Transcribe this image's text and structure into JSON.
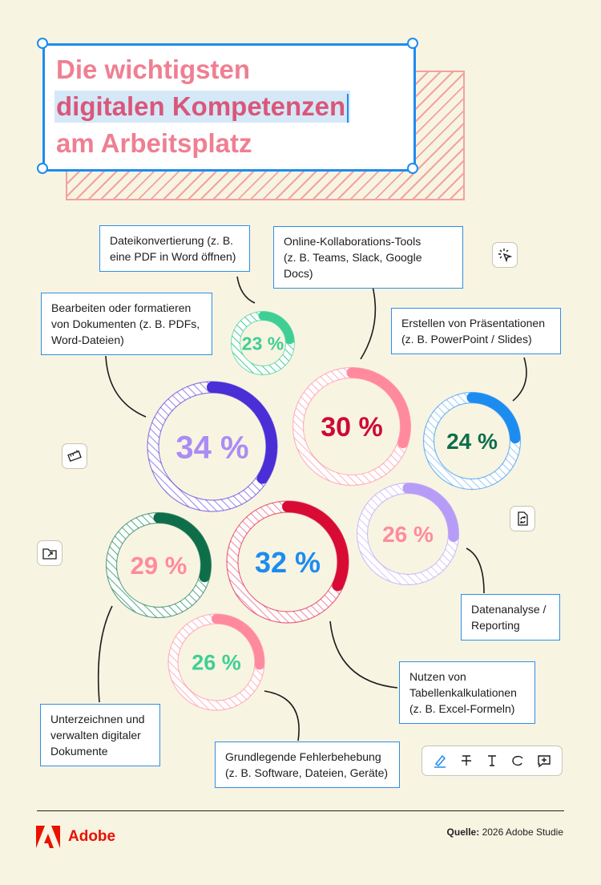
{
  "title": {
    "line1": "Die wichtigsten",
    "line2": "digitalen Kompetenzen",
    "line3": "am Arbeitsplatz"
  },
  "chart_data": {
    "type": "donut",
    "unit": "%",
    "items": [
      {
        "label": "Dateikonvertierung (z. B.\neine PDF in Word öffnen)",
        "value": 23,
        "value_label": "23 %",
        "color": "#3fcf95"
      },
      {
        "label": "Online-Kollaborations-Tools\n(z. B. Teams, Slack, Google Docs)",
        "value": 30,
        "value_label": "30 %",
        "color": "#ff8aa0",
        "text_color": "#cc0a3a"
      },
      {
        "label": "Bearbeiten oder formatieren\nvon Dokumenten (z. B. PDFs,\nWord-Dateien)",
        "value": 34,
        "value_label": "34 %",
        "color": "#4a2ed6",
        "text_color": "#a98cf5"
      },
      {
        "label": "Erstellen von Präsentationen\n(z. B. PowerPoint / Slides)",
        "value": 24,
        "value_label": "24 %",
        "color": "#1d8cf0",
        "text_color": "#0e6e4a"
      },
      {
        "label": "Datenanalyse /\nReporting",
        "value": 26,
        "value_label": "26 %",
        "color": "#b79cf7",
        "text_color": "#ff8aa0"
      },
      {
        "label": "Nutzen von\nTabellenkalkulationen\n(z. B. Excel-Formeln)",
        "value": 32,
        "value_label": "32 %",
        "color": "#d80b35",
        "text_color": "#1d8cf0"
      },
      {
        "label": "Unterzeichnen und\nverwalten digitaler\nDokumente",
        "value": 29,
        "value_label": "29 %",
        "color": "#0f6e4a",
        "text_color": "#ff8aa0"
      },
      {
        "label": "Grundlegende Fehlerbehebung\n(z. B. Software, Dateien, Geräte)",
        "value": 26,
        "value_label": "26 %",
        "color": "#ff8aa0",
        "text_color": "#3fcf95"
      }
    ]
  },
  "icons": {
    "cursor": "cursor-click-icon",
    "ruler": "ruler-icon",
    "convert": "file-convert-icon",
    "export": "folder-export-icon"
  },
  "toolbar": [
    "highlight-pen-icon",
    "strikethrough-icon",
    "text-icon",
    "draw-icon",
    "add-comment-icon"
  ],
  "footer": {
    "brand": "Adobe",
    "source_label": "Quelle:",
    "source_text": "2026 Adobe Studie"
  }
}
